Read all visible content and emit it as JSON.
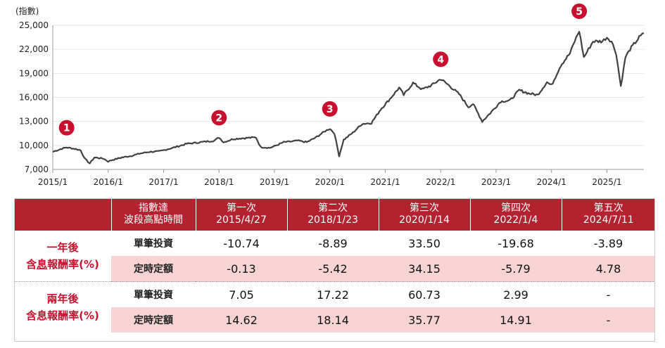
{
  "chart_data": {
    "type": "line",
    "unit_label": "(指數)",
    "y_ticks": [
      "7,000",
      "10,000",
      "13,000",
      "16,000",
      "19,000",
      "22,000",
      "25,000"
    ],
    "y_tick_values": [
      7000,
      10000,
      13000,
      16000,
      19000,
      22000,
      25000
    ],
    "ylim": [
      7000,
      25000
    ],
    "x_ticks": [
      "2015/1",
      "2016/1",
      "2017/1",
      "2018/1",
      "2019/1",
      "2020/1",
      "2021/1",
      "2022/1",
      "2023/1",
      "2024/1",
      "2025/1"
    ],
    "x_range": [
      "2015/1",
      "2025/9"
    ],
    "series_points": [
      [
        "2015-01",
        9200
      ],
      [
        "2015-03",
        9600
      ],
      [
        "2015-04",
        9750
      ],
      [
        "2015-06",
        9550
      ],
      [
        "2015-07",
        9400
      ],
      [
        "2015-08",
        8300
      ],
      [
        "2015-09",
        7750
      ],
      [
        "2015-10",
        8500
      ],
      [
        "2015-12",
        8350
      ],
      [
        "2016-01",
        8000
      ],
      [
        "2016-02",
        8200
      ],
      [
        "2016-04",
        8500
      ],
      [
        "2016-06",
        8700
      ],
      [
        "2016-08",
        9000
      ],
      [
        "2016-10",
        9200
      ],
      [
        "2016-12",
        9250
      ],
      [
        "2017-03",
        9700
      ],
      [
        "2017-06",
        10200
      ],
      [
        "2017-09",
        10400
      ],
      [
        "2017-12",
        10600
      ],
      [
        "2018-01",
        11000
      ],
      [
        "2018-02",
        10400
      ],
      [
        "2018-04",
        10800
      ],
      [
        "2018-06",
        10900
      ],
      [
        "2018-09",
        11000
      ],
      [
        "2018-10",
        9800
      ],
      [
        "2018-12",
        9700
      ],
      [
        "2019-01",
        9900
      ],
      [
        "2019-03",
        10400
      ],
      [
        "2019-05",
        10500
      ],
      [
        "2019-06",
        10600
      ],
      [
        "2019-08",
        10400
      ],
      [
        "2019-10",
        11000
      ],
      [
        "2019-12",
        11800
      ],
      [
        "2020-01",
        12100
      ],
      [
        "2020-02",
        11500
      ],
      [
        "2020-03",
        8700
      ],
      [
        "2020-04",
        10700
      ],
      [
        "2020-06",
        11600
      ],
      [
        "2020-08",
        12700
      ],
      [
        "2020-10",
        12800
      ],
      [
        "2020-12",
        14500
      ],
      [
        "2021-02",
        15800
      ],
      [
        "2021-04",
        17200
      ],
      [
        "2021-05",
        16300
      ],
      [
        "2021-07",
        17800
      ],
      [
        "2021-09",
        17000
      ],
      [
        "2021-11",
        17500
      ],
      [
        "2022-01",
        18300
      ],
      [
        "2022-03",
        17400
      ],
      [
        "2022-05",
        16400
      ],
      [
        "2022-07",
        14800
      ],
      [
        "2022-08",
        15200
      ],
      [
        "2022-10",
        13000
      ],
      [
        "2022-12",
        14200
      ],
      [
        "2023-02",
        15500
      ],
      [
        "2023-04",
        15600
      ],
      [
        "2023-06",
        16900
      ],
      [
        "2023-08",
        16500
      ],
      [
        "2023-10",
        16300
      ],
      [
        "2023-12",
        17900
      ],
      [
        "2024-01",
        17500
      ],
      [
        "2024-03",
        20000
      ],
      [
        "2024-05",
        21500
      ],
      [
        "2024-06",
        23000
      ],
      [
        "2024-07",
        24300
      ],
      [
        "2024-08",
        21000
      ],
      [
        "2024-09",
        22000
      ],
      [
        "2024-10",
        23000
      ],
      [
        "2024-12",
        23000
      ],
      [
        "2025-01",
        23500
      ],
      [
        "2025-02",
        23000
      ],
      [
        "2025-03",
        21500
      ],
      [
        "2025-04",
        17400
      ],
      [
        "2025-05",
        21000
      ],
      [
        "2025-06",
        22000
      ],
      [
        "2025-08",
        23500
      ],
      [
        "2025-09",
        24000
      ]
    ],
    "markers": [
      {
        "label": "1",
        "date": "2015-04"
      },
      {
        "label": "2",
        "date": "2018-01"
      },
      {
        "label": "3",
        "date": "2020-01"
      },
      {
        "label": "4",
        "date": "2022-01"
      },
      {
        "label": "5",
        "date": "2024-07"
      }
    ],
    "colors": {
      "line": "#404040",
      "marker": "#c8102e",
      "axis": "#888888",
      "grid": "#e6e6e6"
    }
  },
  "table": {
    "header": {
      "corner": "",
      "col0_line1": "指數達",
      "col0_line2": "波段高點時間",
      "columns": [
        {
          "line1": "第一次",
          "line2": "2015/4/27"
        },
        {
          "line1": "第二次",
          "line2": "2018/1/23"
        },
        {
          "line1": "第三次",
          "line2": "2020/1/14"
        },
        {
          "line1": "第四次",
          "line2": "2022/1/4"
        },
        {
          "line1": "第五次",
          "line2": "2024/7/11"
        }
      ]
    },
    "groups": [
      {
        "label_line1": "一年後",
        "label_line2_pre": "含",
        "label_line2_ul": "息",
        "label_line2_post": "報酬率(%)",
        "rows": [
          {
            "method": "單筆投資",
            "values": [
              "-10.74",
              "-8.89",
              "33.50",
              "-19.68",
              "-3.89"
            ]
          },
          {
            "method": "定時定額",
            "values": [
              "-0.13",
              "-5.42",
              "34.15",
              "-5.79",
              "4.78"
            ]
          }
        ]
      },
      {
        "label_line1": "兩年後",
        "label_line2_pre": "含息報酬率(%)",
        "label_line2_ul": "",
        "label_line2_post": "",
        "rows": [
          {
            "method": "單筆投資",
            "values": [
              "7.05",
              "17.22",
              "60.73",
              "2.99",
              "-"
            ]
          },
          {
            "method": "定時定額",
            "values": [
              "14.62",
              "18.14",
              "35.77",
              "14.91",
              "-"
            ]
          }
        ]
      }
    ]
  }
}
